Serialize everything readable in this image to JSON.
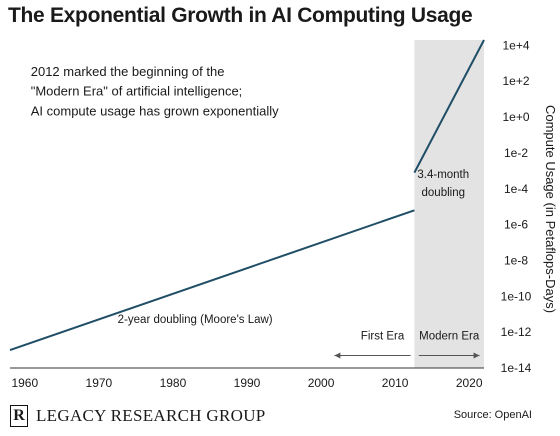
{
  "chart_data": {
    "type": "line",
    "title": "The Exponential Growth in AI Computing Usage",
    "xlabel": "",
    "ylabel": "Compute Usage (in Petaflops-Days)",
    "xlim": [
      1958,
      2022
    ],
    "ylim": [
      -14,
      4.3
    ],
    "y_scale": "log10",
    "x_ticks": [
      1960,
      1970,
      1980,
      1990,
      2000,
      2010,
      2020
    ],
    "y_ticks": [
      {
        "exp": 4,
        "label": "1e+4"
      },
      {
        "exp": 2,
        "label": "1e+2"
      },
      {
        "exp": 0,
        "label": "1e+0"
      },
      {
        "exp": -2,
        "label": "1e-2"
      },
      {
        "exp": -4,
        "label": "1e-4"
      },
      {
        "exp": -6,
        "label": "1e-6"
      },
      {
        "exp": -8,
        "label": "1e-8"
      },
      {
        "exp": -10,
        "label": "1e-10"
      },
      {
        "exp": -12,
        "label": "1e-12"
      },
      {
        "exp": -14,
        "label": "1e-14"
      }
    ],
    "series": [
      {
        "x": [
          1958,
          2012.6
        ],
        "y_log10": [
          -13.0,
          -5.2
        ]
      },
      {
        "x": [
          2012.6,
          2022
        ],
        "y_log10": [
          -3.1,
          4.3
        ]
      }
    ],
    "shaded_region": {
      "x": [
        2012.6,
        2022
      ],
      "color": "#e3e3e3"
    },
    "annotations": [
      {
        "text": "2012 marked the beginning of the",
        "x": 1960.8,
        "y_log10": 2.3
      },
      {
        "text": "\"Modern Era\" of artificial intelligence;",
        "x": 1960.8,
        "y_log10": 1.2
      },
      {
        "text": "AI compute usage has grown exponentially",
        "x": 1960.8,
        "y_log10": 0.1
      },
      {
        "text": "3.4-month",
        "x": 2016.5,
        "y_log10": -3.4
      },
      {
        "text": "doubling",
        "x": 2016.5,
        "y_log10": -4.4
      },
      {
        "text": "2-year doubling (Moore's Law)",
        "x": 1983,
        "y_log10": -11.5
      },
      {
        "text": "First Era",
        "x": 2008.3,
        "y_log10": -12.4
      },
      {
        "text": "Modern Era",
        "x": 2017.3,
        "y_log10": -12.4
      }
    ],
    "era_arrows": [
      {
        "from": 2012.1,
        "to": 2001.8
      },
      {
        "from": 2013.2,
        "to": 2021.4
      }
    ],
    "line_color": "#1f4e66",
    "grid": false
  },
  "footer": {
    "logo_mark": "R",
    "logo_text": "LEGACY RESEARCH GROUP",
    "source": "Source: OpenAI"
  }
}
